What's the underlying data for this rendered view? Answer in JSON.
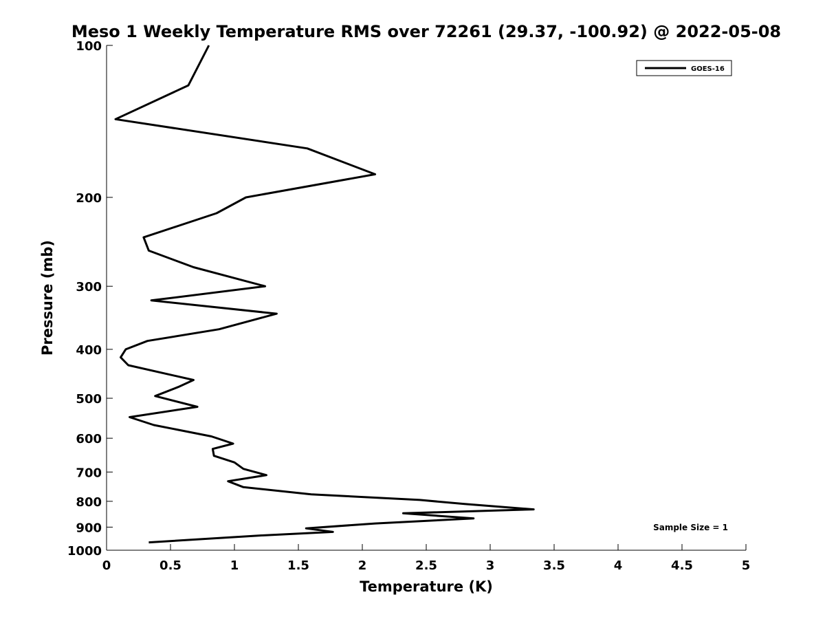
{
  "chart_data": {
    "type": "line",
    "title": "Meso 1 Weekly Temperature RMS over 72261 (29.37, -100.92) @ 2022-05-08",
    "xlabel": "Temperature (K)",
    "ylabel": "Pressure (mb)",
    "xlim": [
      0,
      5
    ],
    "ylim": [
      100,
      1000
    ],
    "y_scale": "log",
    "y_reversed": true,
    "x_ticks": [
      "0",
      "0.5",
      "1",
      "1.5",
      "2",
      "2.5",
      "3",
      "3.5",
      "4",
      "4.5",
      "5"
    ],
    "y_ticks": [
      "100",
      "200",
      "300",
      "400",
      "500",
      "600",
      "700",
      "800",
      "900",
      "1000"
    ],
    "grid": false,
    "legend_position": "top-right",
    "annotation": "Sample Size = 1",
    "series": [
      {
        "name": "GOES-16",
        "color": "#000000",
        "x": [
          0.8,
          0.64,
          0.07,
          1.57,
          2.1,
          1.09,
          0.86,
          0.29,
          0.33,
          0.68,
          1.24,
          0.35,
          1.33,
          0.88,
          0.32,
          0.15,
          0.11,
          0.17,
          0.68,
          0.56,
          0.38,
          0.71,
          0.18,
          0.37,
          0.82,
          0.99,
          0.83,
          0.84,
          1.0,
          1.07,
          1.25,
          0.95,
          1.07,
          1.6,
          2.45,
          2.8,
          3.34,
          2.32,
          2.87,
          2.1,
          1.56,
          1.77,
          1.2,
          0.33
        ],
        "y": [
          100,
          120,
          140,
          160,
          180,
          200,
          215,
          240,
          255,
          275,
          300,
          320,
          340,
          365,
          385,
          400,
          415,
          430,
          460,
          475,
          495,
          520,
          545,
          565,
          595,
          615,
          630,
          650,
          670,
          690,
          710,
          730,
          750,
          775,
          795,
          810,
          830,
          845,
          865,
          885,
          905,
          920,
          935,
          965
        ]
      }
    ]
  }
}
